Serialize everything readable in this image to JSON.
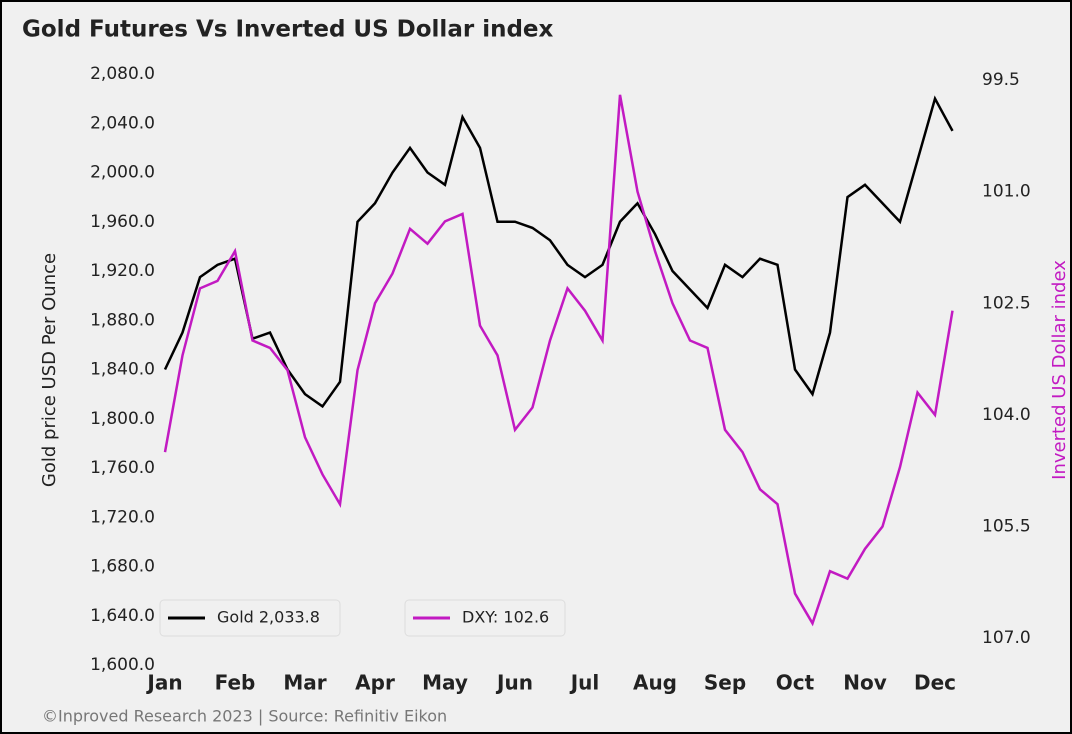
{
  "chart_data": {
    "type": "line",
    "title": "Gold Futures Vs Inverted US Dollar index",
    "y_label": "Gold price USD Per Ounce",
    "y2_label": "Inverted US Dollar index",
    "footer": "©Inproved Research 2023 | Source: Refinitiv Eikon",
    "categories": [
      "Jan",
      null,
      null,
      null,
      "Feb",
      null,
      null,
      null,
      "Mar",
      null,
      null,
      null,
      "Apr",
      null,
      null,
      null,
      "May",
      null,
      null,
      null,
      "Jun",
      null,
      null,
      null,
      "Jul",
      null,
      null,
      null,
      "Aug",
      null,
      null,
      null,
      "Sep",
      null,
      null,
      null,
      "Oct",
      null,
      null,
      null,
      "Nov",
      null,
      null,
      null,
      "Dec",
      null
    ],
    "series": [
      {
        "name": "Gold 2,033.8",
        "color": "#000000",
        "axis": "y",
        "values": [
          1840,
          1870,
          1915,
          1925,
          1930,
          1865,
          1870,
          1840,
          1820,
          1810,
          1830,
          1960,
          1975,
          2000,
          2020,
          2000,
          1990,
          2045,
          2020,
          1960,
          1960,
          1955,
          1945,
          1925,
          1915,
          1925,
          1960,
          1975,
          1950,
          1920,
          1905,
          1890,
          1925,
          1915,
          1930,
          1925,
          1840,
          1820,
          1870,
          1980,
          1990,
          1975,
          1960,
          2010,
          2060,
          2033.8
        ]
      },
      {
        "name": "DXY: 102.6",
        "color": "#c21ac2",
        "axis": "y2",
        "values": [
          104.5,
          103.2,
          102.3,
          102.2,
          101.8,
          103.0,
          103.1,
          103.4,
          104.3,
          104.8,
          105.2,
          103.4,
          102.5,
          102.1,
          101.5,
          101.7,
          101.4,
          101.3,
          102.8,
          103.2,
          104.2,
          103.9,
          103.0,
          102.3,
          102.6,
          103.0,
          99.7,
          101.0,
          101.8,
          102.5,
          103.0,
          103.1,
          104.2,
          104.5,
          105.0,
          105.2,
          106.4,
          106.8,
          106.1,
          106.2,
          105.8,
          105.5,
          104.7,
          103.7,
          104.0,
          102.6
        ]
      }
    ],
    "ylim": [
      1600,
      2080
    ],
    "yticks": [
      {
        "value": 1600,
        "label": "1,600.0"
      },
      {
        "value": 1640,
        "label": "1,640.0"
      },
      {
        "value": 1680,
        "label": "1,680.0"
      },
      {
        "value": 1720,
        "label": "1,720.0"
      },
      {
        "value": 1760,
        "label": "1,760.0"
      },
      {
        "value": 1800,
        "label": "1,800.0"
      },
      {
        "value": 1840,
        "label": "1,840.0"
      },
      {
        "value": 1880,
        "label": "1,880.0"
      },
      {
        "value": 1920,
        "label": "1,920.0"
      },
      {
        "value": 1960,
        "label": "1,960.0"
      },
      {
        "value": 2000,
        "label": "2,000.0"
      },
      {
        "value": 2040,
        "label": "2,040.0"
      },
      {
        "value": 2080,
        "label": "2,080.0"
      }
    ],
    "y2lim": [
      107.36,
      99.42
    ],
    "y2ticks": [
      99.5,
      {
        "value": 101,
        "label": "101.0"
      },
      102.5,
      {
        "value": 104,
        "label": "104.0"
      },
      105.5,
      {
        "value": 107,
        "label": "107.0"
      }
    ],
    "legend": "lower left"
  }
}
